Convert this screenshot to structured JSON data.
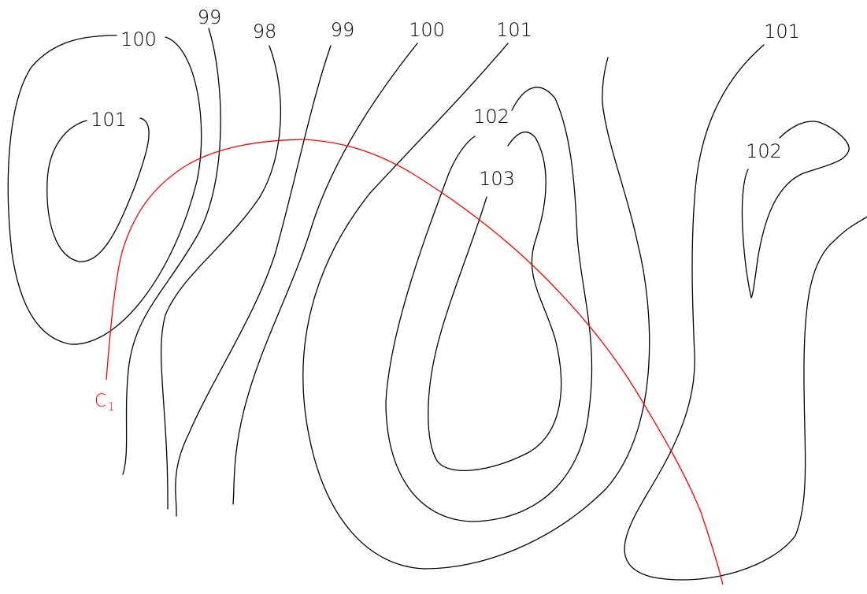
{
  "diagram": {
    "colors": {
      "contour": "#000000",
      "path": "#ff0000",
      "background": "#ffffff"
    },
    "contour_labels": [
      {
        "id": "l100a",
        "text": "100"
      },
      {
        "id": "l101a",
        "text": "101"
      },
      {
        "id": "l99a",
        "text": "99"
      },
      {
        "id": "l98",
        "text": "98"
      },
      {
        "id": "l99b",
        "text": "99"
      },
      {
        "id": "l100b",
        "text": "100"
      },
      {
        "id": "l101b",
        "text": "101"
      },
      {
        "id": "l102a",
        "text": "102"
      },
      {
        "id": "l103",
        "text": "103"
      },
      {
        "id": "l101c",
        "text": "101"
      },
      {
        "id": "l102b",
        "text": "102"
      }
    ],
    "path_label": {
      "letter": "C",
      "subscript": "1"
    }
  }
}
